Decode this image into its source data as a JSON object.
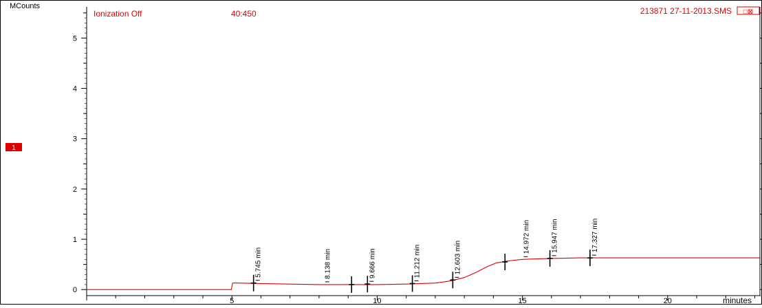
{
  "header": {
    "ylabel": "MCounts",
    "ionization": "Ionization Off",
    "mass_range": "40:450",
    "file_info": "213871 27-11-2013.SMS",
    "icon_label": "□⊠"
  },
  "trace_badge": "1",
  "colors": {
    "trace": "#e00000",
    "axis": "#000000",
    "badge": "#e00000",
    "header_text": "#e00000"
  },
  "chart_data": {
    "type": "line",
    "xlabel": "minutes",
    "ylabel": "MCounts",
    "xlim": [
      0,
      23.2
    ],
    "ylim": [
      -0.12,
      5.62
    ],
    "x_ticks": [
      5,
      10,
      15,
      20
    ],
    "y_ticks": [
      0,
      1,
      2,
      3,
      4,
      5
    ],
    "series": [
      {
        "x": [
          0,
          4.98,
          5.02,
          5.2,
          6,
          7,
          8,
          9,
          10,
          11,
          12,
          12.5,
          13,
          13.4,
          13.8,
          14.1,
          14.5,
          15,
          15.5,
          16,
          17,
          18,
          19,
          20,
          21,
          22,
          23.2
        ],
        "y": [
          0,
          0,
          0.13,
          0.13,
          0.12,
          0.11,
          0.1,
          0.1,
          0.1,
          0.11,
          0.13,
          0.17,
          0.24,
          0.34,
          0.46,
          0.53,
          0.57,
          0.6,
          0.61,
          0.62,
          0.63,
          0.63,
          0.63,
          0.63,
          0.63,
          0.63,
          0.63
        ]
      }
    ],
    "peaks": [
      {
        "x": 5.745,
        "y": 0.13,
        "label": "5.745 min"
      },
      {
        "x": 8.138,
        "y": 0.1,
        "label": "8.138 min"
      },
      {
        "x": 9.666,
        "y": 0.11,
        "label": "9.666 min"
      },
      {
        "x": 11.212,
        "y": 0.12,
        "label": "11.212 min"
      },
      {
        "x": 12.603,
        "y": 0.19,
        "label": "12.603 min"
      },
      {
        "x": 14.972,
        "y": 0.6,
        "label": "14.972 min"
      },
      {
        "x": 15.947,
        "y": 0.62,
        "label": "15.947 min"
      },
      {
        "x": 17.327,
        "y": 0.63,
        "label": "17.327 min"
      }
    ],
    "markers": [
      {
        "x": 5.745,
        "y": 0.13
      },
      {
        "x": 9.12,
        "y": 0.1
      },
      {
        "x": 9.666,
        "y": 0.11
      },
      {
        "x": 11.212,
        "y": 0.12
      },
      {
        "x": 12.603,
        "y": 0.19
      },
      {
        "x": 14.4,
        "y": 0.55
      },
      {
        "x": 15.947,
        "y": 0.62
      },
      {
        "x": 17.327,
        "y": 0.63
      }
    ]
  }
}
